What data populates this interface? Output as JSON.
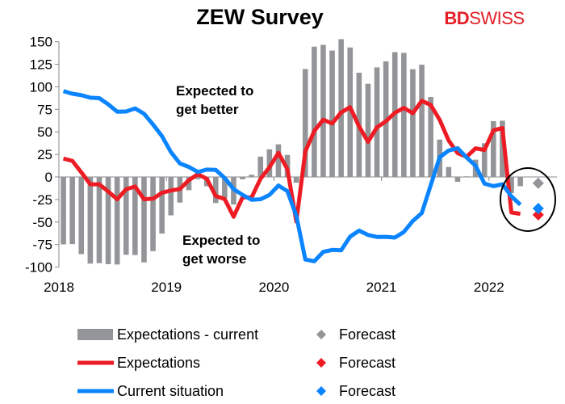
{
  "chart_data": {
    "type": "bar+line",
    "title": "ZEW Survey",
    "logo": "BDSWISS",
    "start": "2018-01",
    "frequency": "monthly",
    "xlabel": "",
    "ylabel": "",
    "ylim": [
      -100,
      150
    ],
    "yticks": [
      -100,
      -75,
      -50,
      -25,
      0,
      25,
      50,
      75,
      100,
      125,
      150
    ],
    "xticks": [
      "2018",
      "2019",
      "2020",
      "2021",
      "2022"
    ],
    "annotations": [
      "Expected to get better",
      "Expected to get worse"
    ],
    "series": [
      {
        "name": "Expectations - current",
        "type": "bar",
        "color": "#939598",
        "values": [
          -74.8,
          -74.5,
          -85.6,
          -96.1,
          -95.6,
          -96.7,
          -97.1,
          -86.3,
          -86.6,
          -94.8,
          -82.3,
          -62.8,
          -42.6,
          -28.4,
          -14.7,
          -2.4,
          -10.3,
          -28.9,
          -23.4,
          -30.6,
          -2.6,
          2.5,
          22.6,
          30.6,
          36.2,
          24.4,
          -6.4,
          119.7,
          144.5,
          146.5,
          140.2,
          152.8,
          143.6,
          115.6,
          103.3,
          121.5,
          128.2,
          138.4,
          137.6,
          119.5,
          124.5,
          88.7,
          41.4,
          11.1,
          -5.4,
          0.7,
          19.2,
          37.3,
          61.9,
          62.4,
          -17.9,
          -10.2
        ]
      },
      {
        "name": "Expectations",
        "type": "line",
        "color": "#ed1c24",
        "values": [
          20.4,
          17.8,
          5.1,
          -8.2,
          -8.2,
          -16.1,
          -24.7,
          -13.7,
          -10.6,
          -24.7,
          -24.1,
          -17.5,
          -15.0,
          -13.4,
          -3.6,
          3.1,
          -2.1,
          -21.1,
          -24.5,
          -44.1,
          -22.5,
          -22.8,
          -2.1,
          10.7,
          26.7,
          8.7,
          -49.5,
          28.2,
          51.0,
          63.4,
          59.3,
          71.5,
          77.4,
          56.1,
          39.0,
          55.0,
          61.8,
          71.2,
          76.6,
          70.7,
          84.4,
          79.8,
          63.3,
          40.4,
          26.5,
          22.3,
          31.7,
          29.9,
          51.7,
          54.3,
          -39.3,
          -41.0
        ]
      },
      {
        "name": "Current situation",
        "type": "line",
        "color": "#0a84ff",
        "values": [
          95.2,
          92.3,
          90.7,
          87.9,
          87.4,
          80.6,
          72.4,
          72.6,
          76.0,
          70.1,
          58.2,
          45.3,
          27.6,
          15.0,
          11.1,
          5.5,
          8.2,
          7.8,
          -1.1,
          -13.5,
          -19.9,
          -25.3,
          -24.7,
          -19.9,
          -9.5,
          -15.7,
          -43.1,
          -91.5,
          -93.5,
          -83.1,
          -80.9,
          -81.3,
          -66.2,
          -59.5,
          -64.3,
          -66.5,
          -66.4,
          -67.2,
          -61.0,
          -48.8,
          -40.1,
          -9.1,
          21.9,
          29.3,
          31.9,
          21.6,
          12.5,
          -7.4,
          -10.2,
          -8.1,
          -21.4,
          -30.8
        ]
      }
    ],
    "forecasts": [
      {
        "name": "Forecast",
        "of": "Expectations - current",
        "color": "#939598",
        "value": -7
      },
      {
        "name": "Forecast",
        "of": "Expectations",
        "color": "#ed1c24",
        "value": -42
      },
      {
        "name": "Forecast",
        "of": "Current situation",
        "color": "#0a84ff",
        "value": -35
      }
    ],
    "legend": {
      "placement": "bottom",
      "entries": [
        "Expectations - current",
        "Forecast",
        "Expectations",
        "Forecast",
        "Current situation",
        "Forecast"
      ]
    }
  }
}
